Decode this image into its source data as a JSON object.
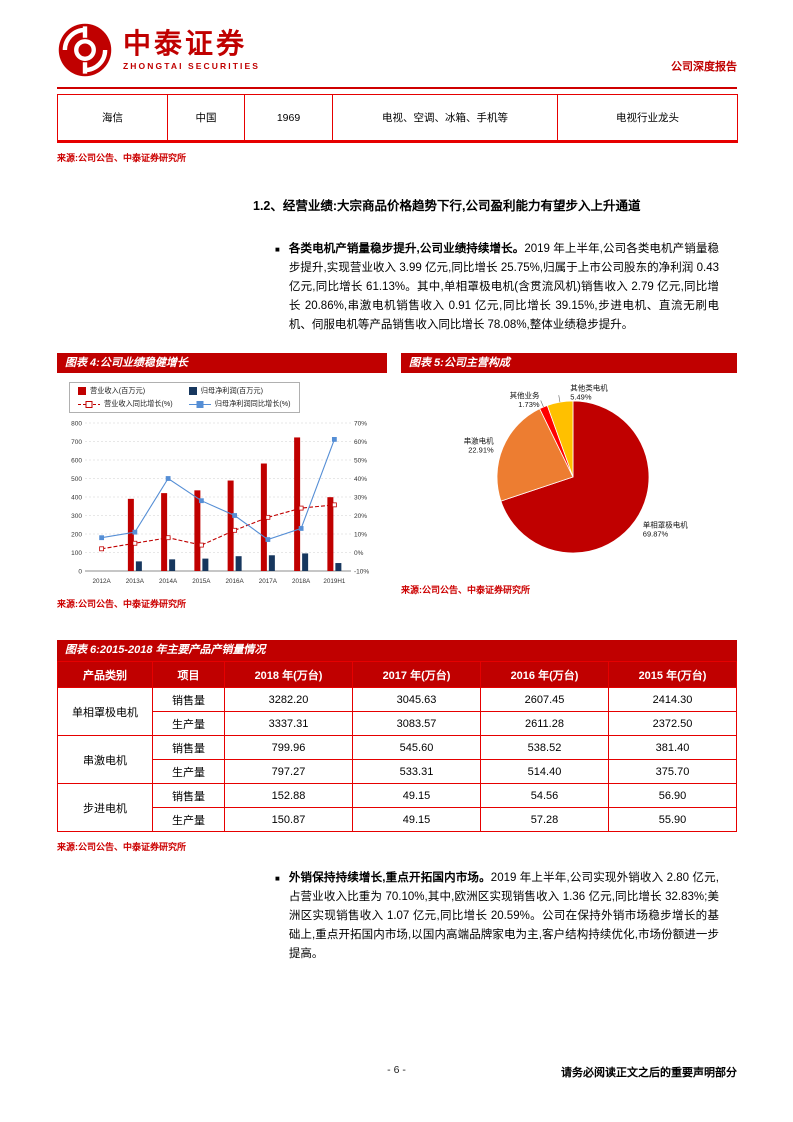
{
  "header": {
    "brand_cn": "中泰证券",
    "brand_en": "ZHONGTAI SECURITIES",
    "report_type": "公司深度报告"
  },
  "top_table": {
    "row": [
      "海信",
      "中国",
      "1969",
      "电视、空调、冰箱、手机等",
      "电视行业龙头"
    ],
    "source": "来源:公司公告、中泰证券研究所"
  },
  "section": {
    "heading": "1.2、经营业绩:大宗商品价格趋势下行,公司盈利能力有望步入上升通道"
  },
  "bullet1": {
    "lead": "各类电机产销量稳步提升,公司业绩持续增长。",
    "body": "2019 年上半年,公司各类电机产销量稳步提升,实现营业收入 3.99 亿元,同比增长 25.75%,归属于上市公司股东的净利润 0.43 亿元,同比增长 61.13%。其中,单相罩极电机(含贯流风机)销售收入 2.79 亿元,同比增长 20.86%,串激电机销售收入 0.91 亿元,同比增长 39.15%,步进电机、直流无刷电机、伺服电机等产品销售收入同比增长 78.08%,整体业绩稳步提升。"
  },
  "figure4": {
    "title": "图表 4:公司业绩稳健增长",
    "source": "来源:公司公告、中泰证券研究所",
    "chart_data": {
      "type": "bar+line",
      "categories": [
        "2012A",
        "2013A",
        "2014A",
        "2015A",
        "2016A",
        "2017A",
        "2018A",
        "2019H1"
      ],
      "series": [
        {
          "name": "营业收入(百万元)",
          "type": "bar",
          "axis": "left",
          "color": "#c00000",
          "values": [
            null,
            390,
            421,
            436,
            489,
            581,
            722,
            399
          ]
        },
        {
          "name": "归母净利润(百万元)",
          "type": "bar",
          "axis": "left",
          "color": "#17375e",
          "values": [
            null,
            52,
            63,
            67,
            80,
            85,
            95,
            43
          ]
        },
        {
          "name": "营业收入同比增长(%)",
          "type": "line",
          "style": "dashed",
          "marker": "open-square",
          "axis": "right",
          "color": "#c00000",
          "values": [
            2,
            5,
            8,
            4,
            12,
            19,
            24,
            25.75
          ]
        },
        {
          "name": "归母净利润同比增长(%)",
          "type": "line",
          "style": "solid",
          "marker": "square",
          "axis": "right",
          "color": "#558ed5",
          "values": [
            8,
            11,
            40,
            28,
            20,
            7,
            13,
            61.13
          ]
        }
      ],
      "left_axis": {
        "min": 0,
        "max": 800,
        "step": 100
      },
      "right_axis": {
        "min": -10,
        "max": 70,
        "step": 10,
        "suffix": "%"
      },
      "grid": true,
      "legend_position": "top"
    }
  },
  "figure5": {
    "title": "图表 5:公司主营构成",
    "source": "来源:公司公告、中泰证券研究所",
    "chart_data": {
      "type": "pie",
      "slices": [
        {
          "label": "单相罩极电机",
          "value": 69.87,
          "display": "69.87%",
          "color": "#c00000"
        },
        {
          "label": "串激电机",
          "value": 22.91,
          "display": "22.91%",
          "color": "#ed7d31"
        },
        {
          "label": "其他业务",
          "value": 1.73,
          "display": "1.73%",
          "color": "#ff0000"
        },
        {
          "label": "其他类电机",
          "value": 5.49,
          "display": "5.49%",
          "color": "#ffc000",
          "label_anchor": "start",
          "label_dx": 12,
          "label_dy": -2
        }
      ]
    }
  },
  "figure6": {
    "title": "图表 6:2015-2018 年主要产品产销量情况",
    "source": "来源:公司公告、中泰证券研究所",
    "table": {
      "headers": [
        "产品类别",
        "项目",
        "2018 年(万台)",
        "2017 年(万台)",
        "2016 年(万台)",
        "2015 年(万台)"
      ],
      "rows": [
        {
          "product": "单相罩极电机",
          "item": "销售量",
          "values": [
            "3282.20",
            "3045.63",
            "2607.45",
            "2414.30"
          ]
        },
        {
          "item": "生产量",
          "values": [
            "3337.31",
            "3083.57",
            "2611.28",
            "2372.50"
          ]
        },
        {
          "product": "串激电机",
          "item": "销售量",
          "values": [
            "799.96",
            "545.60",
            "538.52",
            "381.40"
          ]
        },
        {
          "item": "生产量",
          "values": [
            "797.27",
            "533.31",
            "514.40",
            "375.70"
          ]
        },
        {
          "product": "步进电机",
          "item": "销售量",
          "values": [
            "152.88",
            "49.15",
            "54.56",
            "56.90"
          ]
        },
        {
          "item": "生产量",
          "values": [
            "150.87",
            "49.15",
            "57.28",
            "55.90"
          ]
        }
      ]
    }
  },
  "bullet2": {
    "lead": "外销保持持续增长,重点开拓国内市场。",
    "body": "2019 年上半年,公司实现外销收入 2.80 亿元,占营业收入比重为 70.10%,其中,欧洲区实现销售收入 1.36 亿元,同比增长 32.83%;美洲区实现销售收入 1.07 亿元,同比增长 20.59%。公司在保持外销市场稳步增长的基础上,重点开拓国内市场,以国内高端品牌家电为主,客户结构持续优化,市场份额进一步提高。"
  },
  "footer": {
    "page_number": "- 6 -",
    "disclaimer": "请务必阅读正文之后的重要声明部分"
  },
  "colors": {
    "accent_red": "#c00000",
    "table_border_red": "#e60000",
    "source_red": "#cc0000",
    "profit_bar_navy": "#17375e",
    "growth_line_blue": "#558ed5"
  }
}
